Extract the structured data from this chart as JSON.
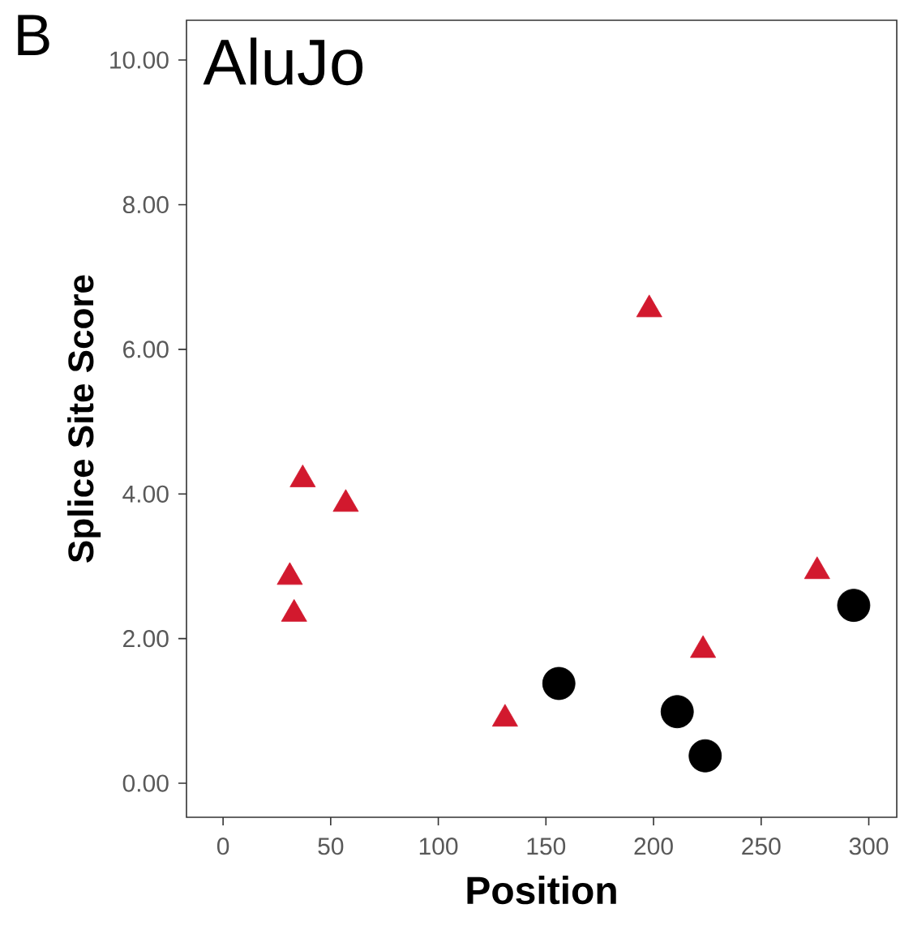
{
  "chart_data": {
    "type": "scatter",
    "xlabel": "Position",
    "ylabel": "Splice Site Score",
    "annotations": [
      "B",
      "AluJo"
    ],
    "xlim": [
      -17,
      313
    ],
    "ylim": [
      -0.47,
      10.55
    ],
    "xticks": [
      0,
      50,
      100,
      150,
      200,
      250,
      300
    ],
    "yticks": [
      {
        "value": 0,
        "label": "0.00"
      },
      {
        "value": 2,
        "label": "2.00"
      },
      {
        "value": 4,
        "label": "4.00"
      },
      {
        "value": 6,
        "label": "6.00"
      },
      {
        "value": 8,
        "label": "8.00"
      },
      {
        "value": 10,
        "label": "10.00"
      }
    ],
    "series": [
      {
        "color": "#d2192e",
        "marker": "triangle",
        "x": [
          37,
          57,
          31,
          33,
          131,
          223,
          276,
          198
        ],
        "values": [
          4.2,
          3.86,
          2.85,
          2.34,
          0.89,
          1.84,
          2.93,
          6.55
        ]
      },
      {
        "color": "#000000",
        "marker": "circle",
        "x": [
          156,
          211,
          224,
          293
        ],
        "values": [
          1.38,
          0.99,
          0.38,
          2.46
        ]
      }
    ]
  }
}
